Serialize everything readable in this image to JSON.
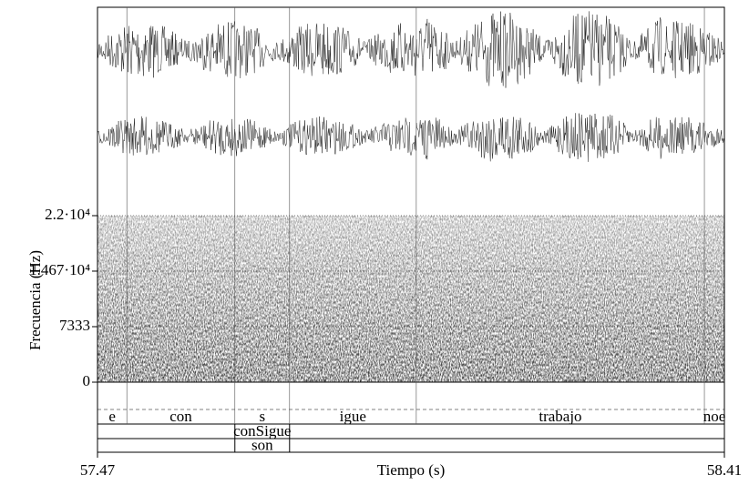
{
  "chart_data": {
    "type": "spectrogram",
    "x_label": "Tiempo (s)",
    "y_label": "Frecuencia (Hz)",
    "xlim": [
      57.47,
      58.41
    ],
    "xticks": [
      57.47,
      58.41
    ],
    "ylim": [
      0,
      22000
    ],
    "yticks": [
      0,
      7333,
      {
        "value": 14670,
        "label": "1.467·10⁴"
      },
      {
        "value": 22000,
        "label": "2.2·10⁴"
      }
    ],
    "grid": true,
    "tiers": [
      {
        "boundaries": [
          57.47,
          57.514,
          57.676,
          57.758,
          57.948,
          58.38,
          58.41
        ],
        "labels": [
          "e",
          "con",
          "s",
          "igue",
          "trabajo",
          "noe"
        ]
      },
      {
        "boundaries": [
          57.47,
          57.676,
          57.758,
          58.41
        ],
        "labels": [
          null,
          "conSigue",
          null
        ]
      },
      {
        "boundaries": [
          57.47,
          57.676,
          57.758,
          58.41
        ],
        "labels": [
          null,
          "son",
          null
        ]
      }
    ]
  }
}
